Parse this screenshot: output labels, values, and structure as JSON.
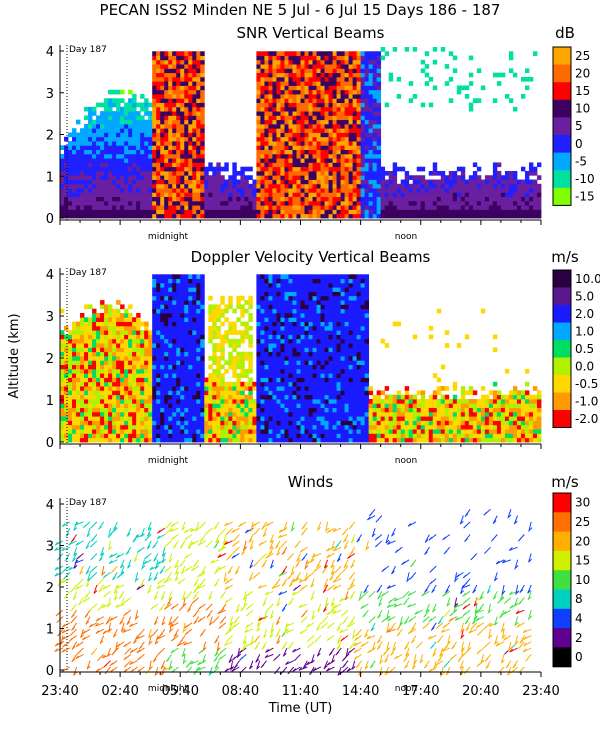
{
  "page_title": "PECAN ISS2 Minden NE    5 Jul -   6 Jul 15 Days 186 - 187",
  "chart_data": [
    {
      "type": "heatmap",
      "title": "SNR Vertical Beams",
      "units": "dB",
      "ylabel": "",
      "ylim": [
        0,
        4
      ],
      "y_ticks": [
        "0",
        "1",
        "2",
        "3",
        "4"
      ],
      "colorbar_labels": [
        "25",
        "20",
        "15",
        "10",
        "5",
        "0",
        "-5",
        "-10",
        "-15"
      ],
      "colorbar_colors": [
        "#ffa500",
        "#ff6a00",
        "#ff0000",
        "#3c0060",
        "#6a1fa0",
        "#2020ff",
        "#00a8ff",
        "#00e0a0",
        "#7fff00"
      ],
      "annotations": {
        "day_marker": "Day 187",
        "midnight": "midnight",
        "noon": "noon"
      }
    },
    {
      "type": "heatmap",
      "title": "Doppler Velocity Vertical Beams",
      "units": "m/s",
      "ylabel": "Altitude (km)",
      "ylim": [
        0,
        4
      ],
      "y_ticks": [
        "0",
        "1",
        "2",
        "3",
        "4"
      ],
      "colorbar_labels": [
        "10.0",
        "5.0",
        "2.0",
        "1.0",
        "0.5",
        "0.0",
        "-0.5",
        "-1.0",
        "-2.0"
      ],
      "colorbar_colors": [
        "#2a0040",
        "#5a1890",
        "#1a1aff",
        "#00a8ff",
        "#00dd60",
        "#b0f000",
        "#ffd800",
        "#ff9a00",
        "#ff0000"
      ],
      "annotations": {
        "day_marker": "Day 187",
        "midnight": "midnight",
        "noon": "noon"
      }
    },
    {
      "type": "scatter",
      "title": "Winds",
      "units": "m/s",
      "ylabel": "",
      "xlabel": "Time (UT)",
      "ylim": [
        0,
        4
      ],
      "y_ticks": [
        "0",
        "1",
        "2",
        "3",
        "4"
      ],
      "x_ticks": [
        "23:40",
        "02:40",
        "05:40",
        "08:40",
        "11:40",
        "14:40",
        "17:40",
        "20:40",
        "23:40"
      ],
      "colorbar_labels": [
        "30",
        "25",
        "20",
        "15",
        "10",
        "8",
        "4",
        "2",
        "0"
      ],
      "colorbar_colors": [
        "#ff0000",
        "#ff7000",
        "#ffb000",
        "#d0f000",
        "#40e040",
        "#00d0c0",
        "#1040ff",
        "#600090",
        "#000000"
      ],
      "annotations": {
        "day_marker": "Day 187",
        "midnight": "midnight",
        "noon": "noon"
      }
    }
  ]
}
